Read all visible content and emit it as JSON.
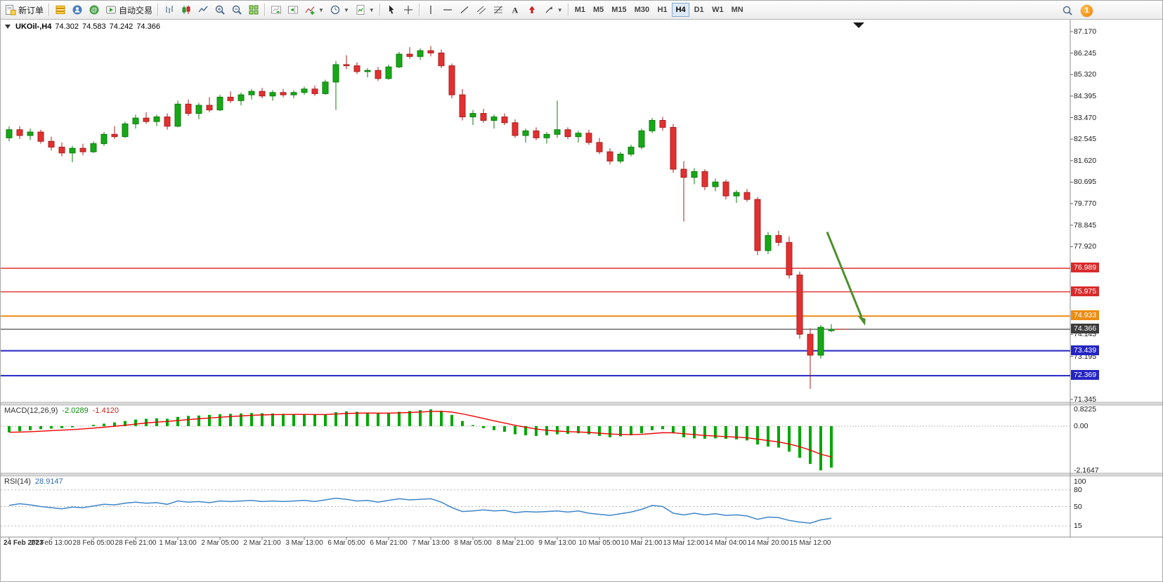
{
  "toolbar": {
    "new_order_label": "新订单",
    "auto_trading_label": "自动交易",
    "timeframes": [
      "M1",
      "M5",
      "M15",
      "M30",
      "H1",
      "H4",
      "D1",
      "W1",
      "MN"
    ],
    "active_timeframe": "H4",
    "notification_count": "1"
  },
  "chart_header": {
    "symbol_period": "UKOil-,H4",
    "open": "74.302",
    "high": "74.583",
    "low": "74.242",
    "close": "74.366"
  },
  "price_scale": {
    "ticks": [
      "87.170",
      "86.245",
      "85.320",
      "84.395",
      "83.470",
      "82.545",
      "81.620",
      "80.695",
      "79.770",
      "78.845",
      "77.920",
      "74.145",
      "73.195",
      "71.345"
    ],
    "tags": [
      {
        "value": "76.989",
        "price": 76.989,
        "color": "#d92b2b"
      },
      {
        "value": "75.975",
        "price": 75.975,
        "color": "#d92b2b"
      },
      {
        "value": "74.933",
        "price": 74.933,
        "color": "#ec8c13"
      },
      {
        "value": "74.366",
        "price": 74.366,
        "color": "#3c3c3c"
      },
      {
        "value": "73.439",
        "price": 73.439,
        "color": "#2424c4"
      },
      {
        "value": "72.369",
        "price": 72.369,
        "color": "#2424c4"
      }
    ]
  },
  "levels": [
    {
      "price": 76.989,
      "color": "#e03030",
      "width": 1.4
    },
    {
      "price": 75.975,
      "color": "#e03030",
      "width": 1.4
    },
    {
      "price": 74.933,
      "color": "#ec8c13",
      "width": 2
    },
    {
      "price": 74.366,
      "color": "#202020",
      "width": 1
    },
    {
      "price": 73.439,
      "color": "#2424c4",
      "width": 2
    },
    {
      "price": 72.369,
      "color": "#2424c4",
      "width": 2
    }
  ],
  "annotations": {
    "arrow": {
      "from": {
        "bar": 77.6,
        "price": 78.55
      },
      "to": {
        "bar": 81.2,
        "price": 74.52
      },
      "color": "#4e8f2e"
    },
    "shift_marker_bar": 80.6,
    "current_price_dash": {
      "price": 74.366,
      "color": "#e03030"
    }
  },
  "chart_data": {
    "type": "candlestick",
    "symbol": "UKOil-",
    "timeframe": "H4",
    "y_range": [
      71.0,
      87.6
    ],
    "bars_ohlc": [
      [
        82.6,
        83.1,
        82.45,
        82.95
      ],
      [
        82.95,
        83.1,
        82.55,
        82.7
      ],
      [
        82.7,
        83.0,
        82.5,
        82.85
      ],
      [
        82.85,
        82.95,
        82.35,
        82.45
      ],
      [
        82.45,
        82.65,
        82.05,
        82.2
      ],
      [
        82.2,
        82.4,
        81.8,
        81.95
      ],
      [
        81.95,
        82.25,
        81.55,
        82.15
      ],
      [
        82.15,
        82.35,
        81.85,
        82.0
      ],
      [
        82.0,
        82.45,
        81.95,
        82.35
      ],
      [
        82.35,
        82.85,
        82.25,
        82.75
      ],
      [
        82.75,
        83.1,
        82.55,
        82.65
      ],
      [
        82.65,
        83.3,
        82.6,
        83.2
      ],
      [
        83.2,
        83.6,
        83.0,
        83.45
      ],
      [
        83.45,
        83.7,
        83.2,
        83.3
      ],
      [
        83.3,
        83.6,
        83.1,
        83.5
      ],
      [
        83.5,
        83.65,
        82.95,
        83.1
      ],
      [
        83.1,
        84.2,
        83.05,
        84.05
      ],
      [
        84.05,
        84.25,
        83.55,
        83.65
      ],
      [
        83.65,
        84.1,
        83.4,
        84.0
      ],
      [
        84.0,
        84.35,
        83.7,
        83.8
      ],
      [
        83.8,
        84.45,
        83.75,
        84.35
      ],
      [
        84.35,
        84.6,
        84.1,
        84.2
      ],
      [
        84.2,
        84.55,
        84.0,
        84.45
      ],
      [
        84.45,
        84.7,
        84.25,
        84.6
      ],
      [
        84.6,
        84.75,
        84.3,
        84.4
      ],
      [
        84.4,
        84.65,
        84.2,
        84.55
      ],
      [
        84.55,
        84.7,
        84.35,
        84.45
      ],
      [
        84.45,
        84.65,
        84.3,
        84.55
      ],
      [
        84.55,
        84.8,
        84.45,
        84.7
      ],
      [
        84.7,
        84.85,
        84.4,
        84.5
      ],
      [
        84.5,
        85.1,
        84.45,
        85.0
      ],
      [
        85.0,
        85.9,
        83.8,
        85.75
      ],
      [
        85.75,
        86.15,
        85.55,
        85.7
      ],
      [
        85.7,
        85.85,
        85.35,
        85.45
      ],
      [
        85.45,
        85.6,
        85.2,
        85.5
      ],
      [
        85.5,
        85.65,
        85.05,
        85.15
      ],
      [
        85.15,
        85.75,
        85.1,
        85.65
      ],
      [
        85.65,
        86.3,
        85.6,
        86.2
      ],
      [
        86.2,
        86.5,
        86.0,
        86.1
      ],
      [
        86.1,
        86.45,
        85.95,
        86.35
      ],
      [
        86.35,
        86.55,
        86.1,
        86.25
      ],
      [
        86.25,
        86.4,
        85.6,
        85.7
      ],
      [
        85.7,
        85.8,
        84.3,
        84.45
      ],
      [
        84.45,
        84.7,
        83.35,
        83.5
      ],
      [
        83.5,
        83.8,
        83.15,
        83.65
      ],
      [
        83.65,
        83.85,
        83.25,
        83.35
      ],
      [
        83.35,
        83.6,
        83.0,
        83.5
      ],
      [
        83.5,
        83.65,
        83.15,
        83.25
      ],
      [
        83.25,
        83.4,
        82.6,
        82.7
      ],
      [
        82.7,
        83.0,
        82.4,
        82.9
      ],
      [
        82.9,
        83.05,
        82.5,
        82.6
      ],
      [
        82.6,
        82.85,
        82.35,
        82.75
      ],
      [
        82.75,
        84.2,
        82.6,
        82.95
      ],
      [
        82.95,
        83.05,
        82.55,
        82.65
      ],
      [
        82.65,
        82.9,
        82.4,
        82.8
      ],
      [
        82.8,
        82.95,
        82.3,
        82.4
      ],
      [
        82.4,
        82.6,
        81.9,
        82.0
      ],
      [
        82.0,
        82.15,
        81.45,
        81.6
      ],
      [
        81.6,
        82.0,
        81.5,
        81.9
      ],
      [
        81.9,
        82.3,
        81.8,
        82.2
      ],
      [
        82.2,
        83.0,
        82.1,
        82.9
      ],
      [
        82.9,
        83.45,
        82.8,
        83.35
      ],
      [
        83.35,
        83.5,
        82.9,
        83.05
      ],
      [
        83.05,
        83.2,
        81.1,
        81.25
      ],
      [
        81.25,
        81.6,
        79.0,
        80.9
      ],
      [
        80.9,
        81.3,
        80.6,
        81.15
      ],
      [
        81.15,
        81.25,
        80.35,
        80.5
      ],
      [
        80.5,
        80.85,
        80.3,
        80.7
      ],
      [
        80.7,
        80.8,
        79.95,
        80.1
      ],
      [
        80.1,
        80.35,
        79.8,
        80.25
      ],
      [
        80.25,
        80.4,
        79.85,
        79.95
      ],
      [
        79.95,
        80.05,
        77.55,
        77.75
      ],
      [
        77.75,
        78.55,
        77.6,
        78.4
      ],
      [
        78.4,
        78.6,
        77.95,
        78.1
      ],
      [
        78.1,
        78.35,
        76.55,
        76.7
      ],
      [
        76.7,
        76.85,
        73.95,
        74.15
      ],
      [
        74.15,
        74.4,
        71.8,
        73.25
      ],
      [
        73.25,
        74.55,
        73.1,
        74.45
      ],
      [
        74.302,
        74.583,
        74.242,
        74.366
      ]
    ],
    "time_labels": [
      {
        "text": "24 Feb 2023",
        "bar": 0
      },
      {
        "text": "27 Feb 13:00",
        "bar": 4
      },
      {
        "text": "28 Feb 05:00",
        "bar": 8
      },
      {
        "text": "28 Feb 21:00",
        "bar": 12
      },
      {
        "text": "1 Mar 13:00",
        "bar": 16
      },
      {
        "text": "2 Mar 05:00",
        "bar": 20
      },
      {
        "text": "2 Mar 21:00",
        "bar": 24
      },
      {
        "text": "3 Mar 13:00",
        "bar": 28
      },
      {
        "text": "6 Mar 05:00",
        "bar": 32
      },
      {
        "text": "6 Mar 21:00",
        "bar": 36
      },
      {
        "text": "7 Mar 13:00",
        "bar": 40
      },
      {
        "text": "8 Mar 05:00",
        "bar": 44
      },
      {
        "text": "8 Mar 21:00",
        "bar": 48
      },
      {
        "text": "9 Mar 13:00",
        "bar": 52
      },
      {
        "text": "10 Mar 05:00",
        "bar": 56
      },
      {
        "text": "10 Mar 21:00",
        "bar": 60
      },
      {
        "text": "13 Mar 12:00",
        "bar": 64
      },
      {
        "text": "14 Mar 04:00",
        "bar": 68
      },
      {
        "text": "14 Mar 20:00",
        "bar": 72
      },
      {
        "text": "15 Mar 12:00",
        "bar": 76
      }
    ]
  },
  "macd": {
    "label": "MACD(12,26,9)",
    "value_main": "-2.0289",
    "value_signal": "-1.4120",
    "scale_max": "0.8225",
    "scale_zero": "0.00",
    "scale_min": "-2.1647",
    "colors": {
      "histogram": "#00a800",
      "signal": "#ee0000"
    },
    "histogram": [
      -0.3,
      -0.25,
      -0.2,
      -0.15,
      -0.12,
      -0.1,
      -0.06,
      0.0,
      0.06,
      0.12,
      0.18,
      0.25,
      0.32,
      0.36,
      0.38,
      0.36,
      0.45,
      0.5,
      0.52,
      0.55,
      0.58,
      0.6,
      0.62,
      0.64,
      0.63,
      0.62,
      0.6,
      0.58,
      0.57,
      0.55,
      0.58,
      0.68,
      0.72,
      0.7,
      0.66,
      0.62,
      0.64,
      0.7,
      0.74,
      0.78,
      0.82,
      0.75,
      0.55,
      0.25,
      0.05,
      -0.1,
      -0.2,
      -0.28,
      -0.4,
      -0.45,
      -0.48,
      -0.45,
      -0.4,
      -0.38,
      -0.35,
      -0.4,
      -0.48,
      -0.55,
      -0.5,
      -0.45,
      -0.35,
      -0.2,
      -0.15,
      -0.35,
      -0.55,
      -0.6,
      -0.62,
      -0.6,
      -0.62,
      -0.65,
      -0.7,
      -0.9,
      -1.0,
      -1.05,
      -1.25,
      -1.55,
      -1.85,
      -2.1647,
      -2.0289
    ]
  },
  "rsi": {
    "label": "RSI(14)",
    "value": "28.9147",
    "color": "#3d86c8",
    "levels": [
      {
        "label": "100",
        "value": 100,
        "line": false
      },
      {
        "label": "80",
        "value": 80,
        "line": true
      },
      {
        "label": "50",
        "value": 50,
        "line": true
      },
      {
        "label": "15",
        "value": 15,
        "line": true
      }
    ],
    "values": [
      52,
      55,
      53,
      50,
      48,
      46,
      49,
      48,
      51,
      54,
      53,
      56,
      58,
      56,
      57,
      54,
      60,
      58,
      59,
      57,
      60,
      59,
      60,
      61,
      59,
      60,
      59,
      60,
      61,
      59,
      62,
      65,
      63,
      60,
      61,
      58,
      61,
      64,
      62,
      63,
      64,
      58,
      48,
      41,
      42,
      44,
      42,
      43,
      39,
      41,
      40,
      41,
      42,
      40,
      42,
      38,
      36,
      34,
      37,
      40,
      45,
      52,
      50,
      38,
      35,
      38,
      35,
      37,
      34,
      35,
      33,
      27,
      31,
      30,
      25,
      22,
      20,
      26,
      28.91
    ]
  }
}
